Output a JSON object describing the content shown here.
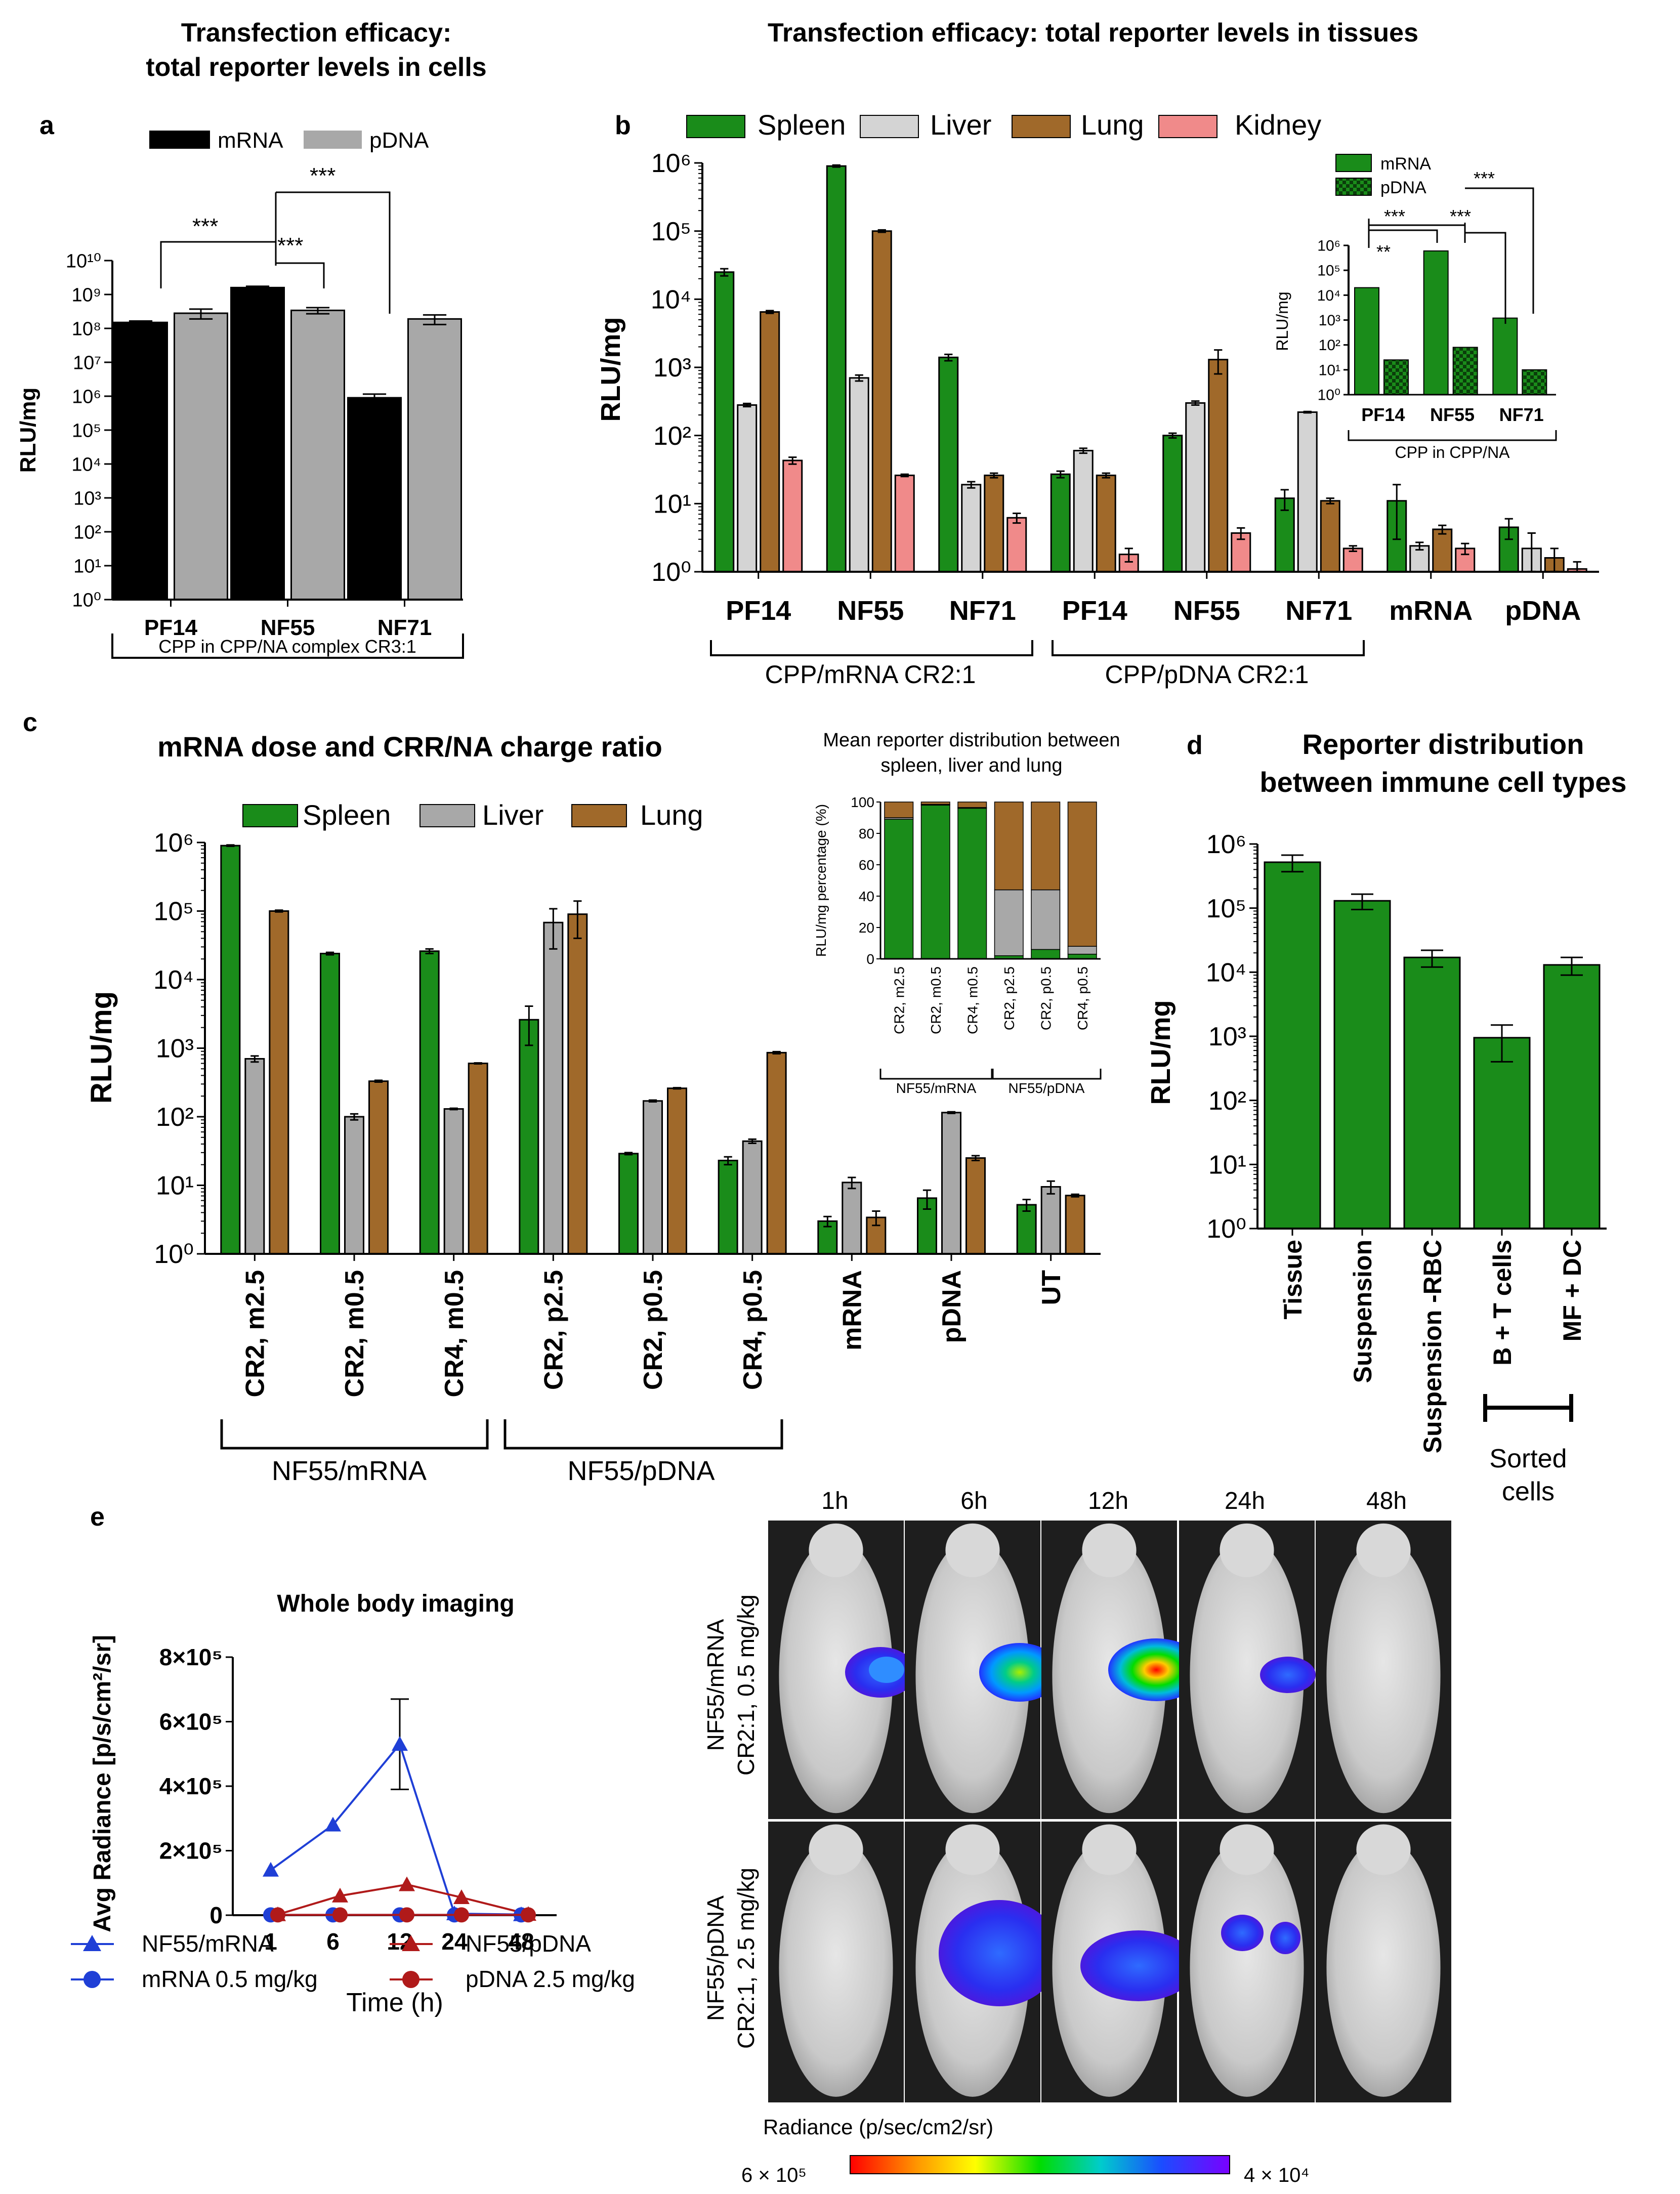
{
  "colors": {
    "spleen": "#1a8c1a",
    "liver": "#d4d4d4",
    "liver_c": "#a8a8a8",
    "lung": "#a0692a",
    "kidney": "#f08a8a",
    "mrna_black": "#000000",
    "pdna_gray": "#a8a8a8",
    "blue": "#1f3fd6",
    "red": "#b01a1a"
  },
  "panels": {
    "a": {
      "letter": "a",
      "title1": "Transfection efficacy:",
      "title2": "total reporter levels in cells",
      "legend": [
        "mRNA",
        "pDNA"
      ],
      "bracket_label": "CPP in CPP/NA complex CR3:1",
      "significance": [
        "***",
        "***",
        "***"
      ]
    },
    "b": {
      "letter": "b",
      "title": "Transfection efficacy: total reporter levels in tissues",
      "legend": [
        "Spleen",
        "Liver",
        "Lung",
        "Kidney"
      ],
      "brackets": [
        "CPP/mRNA  CR2:1",
        "CPP/pDNA CR2:1"
      ]
    },
    "b_inset": {
      "legend": [
        "mRNA",
        "pDNA"
      ],
      "significance": [
        "**",
        "***",
        "***",
        "***"
      ],
      "bracket_label": "CPP in CPP/NA"
    },
    "c": {
      "letter": "c",
      "title": "mRNA dose and CRR/NA charge ratio",
      "legend": [
        "Spleen",
        "Liver",
        "Lung"
      ],
      "brackets": [
        "NF55/mRNA",
        "NF55/pDNA"
      ]
    },
    "c_inset": {
      "title1": "Mean reporter distribution between",
      "title2": "spleen, liver and lung",
      "brackets": [
        "NF55/mRNA",
        "NF55/pDNA"
      ]
    },
    "d": {
      "letter": "d",
      "title1": "Reporter distribution",
      "title2": "between immune cell types",
      "bracket_label1": "Sorted",
      "bracket_label2": "cells"
    },
    "e": {
      "letter": "e",
      "title": "Whole body imaging",
      "legend": [
        "NF55/mRNA",
        "NF55/pDNA",
        "mRNA 0.5 mg/kg",
        "pDNA 2.5 mg/kg"
      ],
      "times": [
        "1h",
        "6h",
        "12h",
        "24h",
        "48h"
      ],
      "row_labels": [
        [
          "NF55/mRNA",
          "CR2:1, 0.5 mg/kg"
        ],
        [
          "NF55/pDNA",
          "CR2:1, 2.5 mg/kg"
        ]
      ],
      "colorbar_title": "Radiance (p/sec/cm2/sr)",
      "colorbar_max": "6 × 10⁵",
      "colorbar_min": "4 × 10⁴"
    }
  },
  "chart_data": [
    {
      "id": "a",
      "type": "bar",
      "title": "Transfection efficacy: total reporter levels in cells",
      "ylabel": "RLU/mg",
      "yscale": "log",
      "ylim": [
        1,
        10000000000
      ],
      "categories": [
        "PF14",
        "NF55",
        "NF71"
      ],
      "series": [
        {
          "name": "mRNA",
          "values": [
            150000000,
            1600000000,
            900000
          ],
          "err": [
            15000000,
            150000000,
            250000
          ]
        },
        {
          "name": "pDNA",
          "values": [
            280000000,
            340000000,
            190000000
          ],
          "err": [
            90000000,
            70000000,
            60000000
          ]
        }
      ]
    },
    {
      "id": "b",
      "type": "bar",
      "title": "Transfection efficacy: total reporter levels in tissues",
      "ylabel": "RLU/mg",
      "yscale": "log",
      "ylim": [
        1,
        1000000
      ],
      "categories": [
        "PF14",
        "NF55",
        "NF71",
        "PF14",
        "NF55",
        "NF71",
        "mRNA",
        "pDNA"
      ],
      "series": [
        {
          "name": "Spleen",
          "values": [
            25000,
            900000,
            1400,
            27,
            100,
            12,
            11,
            4.5
          ],
          "err": [
            3000,
            30000,
            150,
            3,
            8,
            4,
            8,
            1.5
          ]
        },
        {
          "name": "Liver",
          "values": [
            280,
            700,
            19,
            60,
            300,
            220,
            2.4,
            2.2
          ],
          "err": [
            15,
            70,
            2,
            5,
            20,
            5,
            0.3,
            1.5
          ]
        },
        {
          "name": "Lung",
          "values": [
            6500,
            100000,
            26,
            26,
            1300,
            11,
            4.2,
            1.6
          ],
          "err": [
            300,
            4000,
            2,
            2,
            500,
            1,
            0.6,
            0.6
          ]
        },
        {
          "name": "Kidney",
          "values": [
            43,
            26,
            6.2,
            1.8,
            3.7,
            2.2,
            2.2,
            1.1
          ],
          "err": [
            5,
            1,
            1,
            0.4,
            0.7,
            0.2,
            0.4,
            0.3
          ]
        }
      ]
    },
    {
      "id": "b_inset",
      "type": "bar",
      "ylabel": "RLU/mg",
      "yscale": "log",
      "ylim": [
        1,
        1000000
      ],
      "xlabel": "CPP in CPP/NA",
      "categories": [
        "PF14",
        "NF55",
        "NF71"
      ],
      "series": [
        {
          "name": "mRNA",
          "values": [
            20000,
            600000,
            1200
          ]
        },
        {
          "name": "pDNA",
          "values": [
            25,
            80,
            10
          ]
        }
      ]
    },
    {
      "id": "c",
      "type": "bar",
      "title": "mRNA dose and CRR/NA charge ratio",
      "ylabel": "RLU/mg",
      "yscale": "log",
      "ylim": [
        1,
        1000000
      ],
      "categories": [
        "CR2, m2.5",
        "CR2, m0.5",
        "CR4, m0.5",
        "CR2, p2.5",
        "CR2, p0.5",
        "CR4, p0.5",
        "mRNA",
        "pDNA",
        "UT"
      ],
      "series": [
        {
          "name": "Spleen",
          "values": [
            900000,
            24000,
            26000,
            2600,
            29,
            23,
            3,
            6.5,
            5.2
          ],
          "err": [
            20000,
            1000,
            2000,
            1500,
            1,
            3,
            0.5,
            2,
            1
          ]
        },
        {
          "name": "Liver",
          "values": [
            700,
            100,
            130,
            68000,
            170,
            44,
            11,
            115,
            9.5
          ],
          "err": [
            70,
            10,
            3,
            40000,
            5,
            3,
            2,
            3,
            2
          ]
        },
        {
          "name": "Lung",
          "values": [
            100000,
            330,
            600,
            90000,
            260,
            860,
            3.4,
            25,
            7.1
          ],
          "err": [
            3000,
            10,
            10,
            50000,
            5,
            30,
            0.8,
            2,
            0.3
          ]
        }
      ]
    },
    {
      "id": "c_inset",
      "type": "bar",
      "stacked": true,
      "title": "Mean reporter distribution between spleen, liver and lung",
      "ylabel": "RLU/mg percentage (%)",
      "ylim": [
        0,
        100
      ],
      "categories": [
        "CR2, m2.5",
        "CR2, m0.5",
        "CR4, m0.5",
        "CR2, p2.5",
        "CR2, p0.5",
        "CR4, p0.5"
      ],
      "series": [
        {
          "name": "Spleen",
          "values": [
            89,
            98,
            96,
            2,
            6,
            3
          ]
        },
        {
          "name": "Liver",
          "values": [
            1,
            0.5,
            0.5,
            42,
            38,
            5
          ]
        },
        {
          "name": "Lung",
          "values": [
            10,
            1.5,
            3.5,
            56,
            56,
            92
          ]
        }
      ]
    },
    {
      "id": "d",
      "type": "bar",
      "title": "Reporter distribution between immune cell types",
      "ylabel": "RLU/mg",
      "yscale": "log",
      "ylim": [
        1,
        1000000
      ],
      "categories": [
        "Tissue",
        "Suspension",
        "Suspension -RBC",
        "B + T cells",
        "MF + DC"
      ],
      "values": [
        520000,
        130000,
        17000,
        950,
        13000
      ],
      "err": [
        150000,
        35000,
        5000,
        550,
        4000
      ]
    },
    {
      "id": "e",
      "type": "line",
      "title": "Whole body imaging",
      "xlabel": "Time (h)",
      "ylabel": "Avg Radiance [p/s/cm²/sr]",
      "ylim": [
        0,
        800000
      ],
      "yticks": [
        "0",
        "2×10⁵",
        "4×10⁵",
        "6×10⁵",
        "8×10⁵"
      ],
      "categories": [
        "1",
        "6",
        "12",
        "24",
        "48"
      ],
      "series": [
        {
          "name": "NF55/mRNA",
          "values": [
            140000,
            280000,
            530000,
            5000,
            2000
          ],
          "err": [
            0,
            0,
            140000,
            0,
            0
          ]
        },
        {
          "name": "NF55/pDNA",
          "values": [
            2000,
            60000,
            95000,
            55000,
            3000
          ]
        },
        {
          "name": "mRNA 0.5 mg/kg",
          "values": [
            1000,
            1000,
            1000,
            1000,
            1000
          ]
        },
        {
          "name": "pDNA 2.5 mg/kg",
          "values": [
            1000,
            1000,
            1000,
            1000,
            1000
          ]
        }
      ]
    }
  ]
}
